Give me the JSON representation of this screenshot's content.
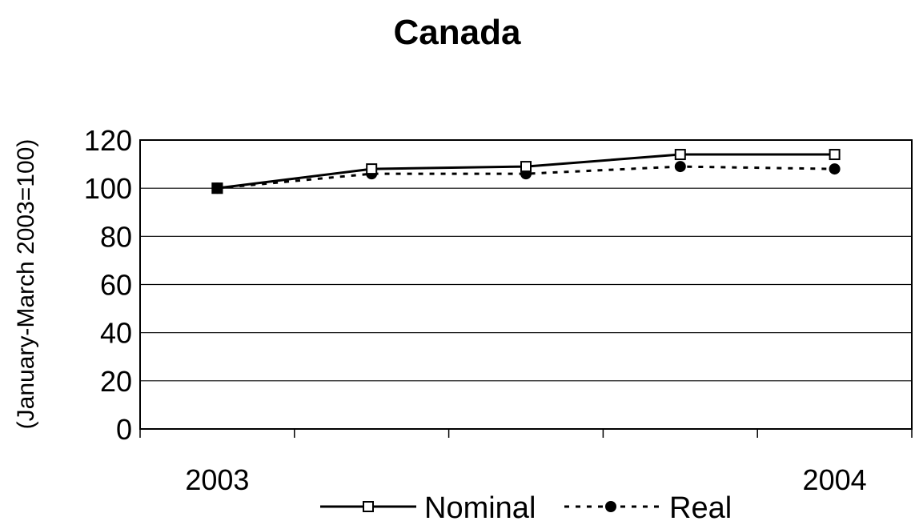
{
  "chart_data": {
    "type": "line",
    "title": "Canada",
    "ylabel": "(January-March 2003=100)",
    "xlabel": "",
    "ylim": [
      0,
      120
    ],
    "y_ticks": [
      "0",
      "20",
      "40",
      "60",
      "80",
      "100",
      "120"
    ],
    "x_labels": [
      {
        "label": "2003",
        "index": 0
      },
      {
        "label": "2004",
        "index": 4
      }
    ],
    "x": [
      0,
      1,
      2,
      3,
      4
    ],
    "series": [
      {
        "name": "Nominal",
        "values": [
          100,
          108,
          109,
          114,
          114
        ],
        "color": "#000000",
        "line": "solid",
        "marker": "open-square"
      },
      {
        "name": "Real",
        "values": [
          100,
          106,
          106,
          109,
          108
        ],
        "color": "#000000",
        "line": "dotted",
        "marker": "filled-circle"
      }
    ],
    "grid": true,
    "legend_position": "bottom"
  }
}
